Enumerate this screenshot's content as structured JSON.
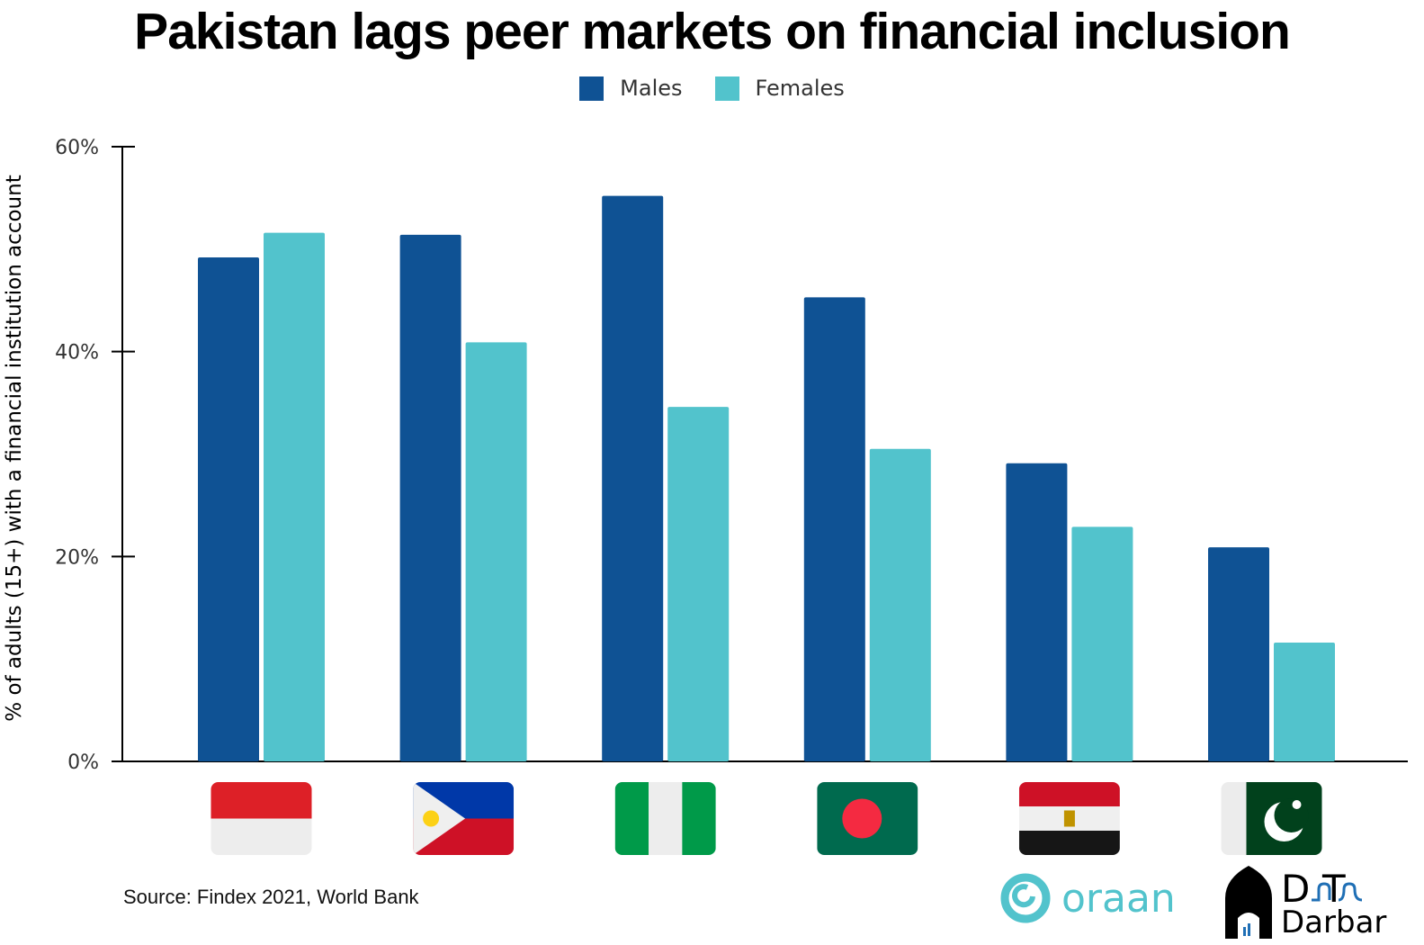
{
  "chart_data": {
    "type": "bar",
    "title": "Pakistan lags peer markets on financial inclusion",
    "ylabel": "% of adults (15+) with a financial institution account",
    "xlabel": "",
    "categories": [
      "indonesia-flag",
      "philippines-flag",
      "nigeria-flag",
      "bangladesh-flag",
      "egypt-flag",
      "pakistan-flag"
    ],
    "series": [
      {
        "name": "Males",
        "color": "#0f5294",
        "values": [
          49.2,
          51.4,
          55.2,
          45.3,
          29.1,
          20.9
        ]
      },
      {
        "name": "Females",
        "color": "#52c3cc",
        "values": [
          51.6,
          40.9,
          34.6,
          30.5,
          22.9,
          11.6
        ]
      }
    ],
    "ylim": [
      0,
      60
    ],
    "yticks": [
      "0%",
      "20%",
      "40%",
      "60%"
    ],
    "ytick_values": [
      0,
      20,
      40,
      60
    ],
    "grid": false,
    "legend": "top-center"
  },
  "source": "Source: Findex 2021, World Bank",
  "logos": {
    "oraan": "oraan",
    "data_darbar": "Data Darbar"
  }
}
